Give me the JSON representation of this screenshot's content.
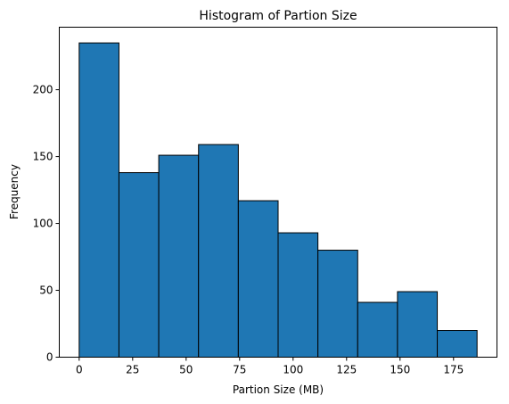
{
  "chart_data": {
    "type": "bar",
    "subtype": "histogram",
    "title": "Histogram of Partion Size",
    "xlabel": "Partion Size (MB)",
    "ylabel": "Frequency",
    "bins": [
      {
        "start": 0.0,
        "end": 18.6,
        "count": 235
      },
      {
        "start": 18.6,
        "end": 37.2,
        "count": 138
      },
      {
        "start": 37.2,
        "end": 55.8,
        "count": 151
      },
      {
        "start": 55.8,
        "end": 74.4,
        "count": 159
      },
      {
        "start": 74.4,
        "end": 93.0,
        "count": 117
      },
      {
        "start": 93.0,
        "end": 111.6,
        "count": 93
      },
      {
        "start": 111.6,
        "end": 130.2,
        "count": 80
      },
      {
        "start": 130.2,
        "end": 148.8,
        "count": 41
      },
      {
        "start": 148.8,
        "end": 167.4,
        "count": 49
      },
      {
        "start": 167.4,
        "end": 186.0,
        "count": 20
      }
    ],
    "xticks": [
      0,
      25,
      50,
      75,
      100,
      125,
      150,
      175
    ],
    "yticks": [
      0,
      50,
      100,
      150,
      200
    ],
    "xlim": [
      -9.3,
      195.3
    ],
    "ylim": [
      0,
      246.75
    ],
    "bar_color": "#1f77b4",
    "edge_color": "#000000",
    "grid": false,
    "legend": "none"
  }
}
